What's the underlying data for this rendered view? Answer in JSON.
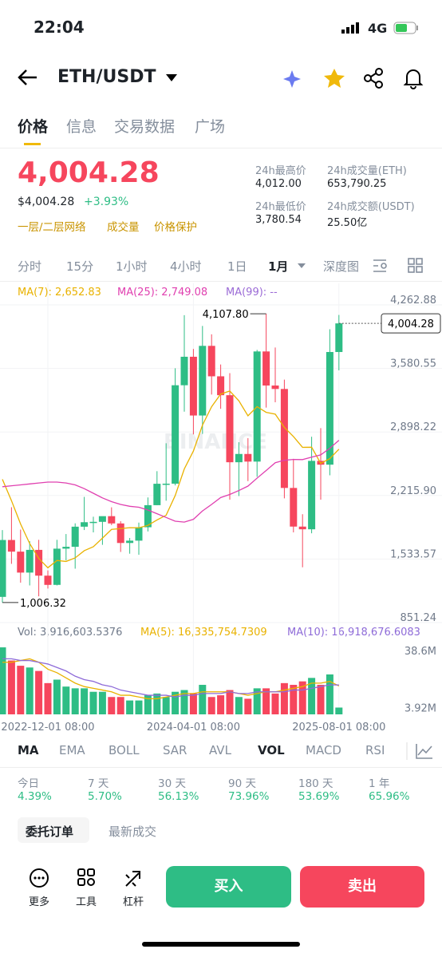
{
  "status_bar": {
    "time": "22:04",
    "network": "4G"
  },
  "header": {
    "pair": "ETH/USDT"
  },
  "tabs": [
    "价格",
    "信息",
    "交易数据",
    "广场"
  ],
  "price": {
    "last": "4,004.28",
    "usd": "$4,004.28",
    "change": "+3.93%",
    "tags": [
      "一层/二层网络",
      "成交量",
      "价格保护"
    ]
  },
  "stats": [
    {
      "label": "24h最高价",
      "value": "4,012.00"
    },
    {
      "label": "24h成交量(ETH)",
      "value": "653,790.25"
    },
    {
      "label": "24h最低价",
      "value": "3,780.54"
    },
    {
      "label": "24h成交额(USDT)",
      "value": "25.50亿"
    }
  ],
  "intervals": [
    "分时",
    "15分",
    "1小时",
    "4小时",
    "1日",
    "1月",
    "深度图"
  ],
  "chart_data": {
    "type": "candlestick",
    "watermark": "BINANCE",
    "categories": [
      null,
      null,
      null,
      null,
      null,
      "2022-12-01 08:00",
      null,
      null,
      null,
      null,
      null,
      null,
      null,
      null,
      null,
      null,
      null,
      null,
      null,
      null,
      null,
      "2024-04-01 08:00",
      null,
      null,
      null,
      null,
      null,
      null,
      null,
      null,
      null,
      null,
      null,
      null,
      null,
      null,
      null,
      "2025-08-01 08:00"
    ],
    "open": [
      1067,
      1678,
      1553,
      1328,
      1572,
      1295,
      1196,
      1585,
      1605,
      1821,
      1869,
      1873,
      1934,
      1856,
      1646,
      1671,
      1815,
      2052,
      2282,
      2283,
      3340,
      3646,
      3015,
      3763,
      3436,
      3233,
      2513,
      2602,
      2520,
      3703,
      3337,
      3300,
      2237,
      1822,
      1793,
      2528,
      2487,
      3697
    ],
    "high": [
      1785,
      2030,
      1790,
      1665,
      1680,
      1352,
      1680,
      1742,
      1857,
      2141,
      1928,
      1928,
      2029,
      1880,
      1700,
      1865,
      2135,
      2417,
      2717,
      3522,
      4093,
      3730,
      3977,
      3887,
      3563,
      3470,
      2728,
      2772,
      3720,
      4107.8,
      3745,
      3400,
      2550,
      1955,
      2787,
      2880,
      3941,
      4095
    ],
    "low": [
      1006.32,
      1422,
      1220,
      1190,
      1073,
      1157,
      1190,
      1460,
      1370,
      1785,
      1760,
      1626,
      1838,
      1550,
      1531,
      1520,
      1770,
      2051,
      2100,
      2265,
      3056,
      2812,
      2817,
      3240,
      3087,
      2111,
      2150,
      2310,
      2357,
      3100,
      3157,
      2125,
      1760,
      1385,
      1750,
      2111,
      2373,
      3500
    ],
    "close": [
      1678,
      1553,
      1328,
      1572,
      1295,
      1196,
      1585,
      1605,
      1821,
      1869,
      1873,
      1934,
      1856,
      1646,
      1671,
      1815,
      2052,
      2282,
      2283,
      3340,
      3646,
      3015,
      3763,
      3436,
      3233,
      2513,
      2602,
      2520,
      3703,
      3337,
      3300,
      2237,
      1822,
      1793,
      2528,
      2487,
      3697,
      4004.28
    ],
    "up_color": "#2ebd85",
    "down_color": "#f6465d",
    "ylim": [
      851.24,
      4262.88
    ],
    "yticks": [
      {
        "value": 4262.88,
        "label": "4,262.88"
      },
      {
        "value": 3580.55,
        "label": "3,580.55"
      },
      {
        "value": 2898.22,
        "label": "2,898.22"
      },
      {
        "value": 2215.9,
        "label": "2,215.90"
      },
      {
        "value": 1533.57,
        "label": "1,533.57"
      },
      {
        "value": 851.24,
        "label": "851.24"
      }
    ],
    "ma_lines": [
      {
        "label": "MA(7): 2,652.83",
        "color": "#e9b200",
        "values": [
          2330,
          2100,
          1850,
          1640,
          1480,
          1380,
          1458.1,
          1447.7,
          1486.0,
          1563.3,
          1606.3,
          1697.6,
          1791.9,
          1800.6,
          1810.0,
          1809.1,
          1835.3,
          1893.7,
          1943.6,
          2155.6,
          2441.3,
          2633.3,
          2911.6,
          3109.3,
          3245.1,
          3278.0,
          3172.6,
          3011.7,
          3110.0,
          3049.1,
          3029.7,
          2887.4,
          2788.7,
          2673.1,
          2674.3,
          2500.6,
          2552.0,
          2652.83
        ]
      },
      {
        "label": "MA(25): 2,749.08",
        "color": "#e040b0",
        "values": [
          2250,
          2260,
          2270,
          2280,
          2290,
          2300,
          2300,
          2290,
          2270,
          2230,
          2180,
          2130,
          2090,
          2060,
          2040,
          2030,
          2000,
          1960,
          1920,
          1880,
          1870,
          1900,
          1990,
          2060,
          2133.9,
          2167.3,
          2209.2,
          2256.9,
          2342.2,
          2423.8,
          2508.0,
          2534.1,
          2542.8,
          2541.6,
          2568.0,
          2592.6,
          2663.1,
          2749.08
        ]
      },
      {
        "label": "MA(99): --",
        "color": "#9b6bd6"
      }
    ],
    "last_price": {
      "value": 4004.28,
      "label": "4,004.28"
    },
    "annotations": [
      {
        "value": 4107.8,
        "label": "4,107.80"
      },
      {
        "value": 1006.32,
        "label": "1,006.32"
      }
    ],
    "volume": {
      "label": "Vol: 3,916,603.5376",
      "ylim": [
        0,
        40000000
      ],
      "yticks": [
        {
          "value": 38600000,
          "label": "38.6M"
        },
        {
          "value": 3916603.5376,
          "label": "3.92M"
        }
      ],
      "values": [
        38600000,
        31000000,
        28000000,
        27000000,
        25000000,
        18000000,
        20000000,
        16000000,
        15000000,
        15000000,
        13000000,
        13000000,
        10000000,
        10000000,
        8000000,
        8000000,
        11000000,
        12000000,
        10000000,
        13000000,
        14000000,
        12000000,
        17000000,
        10000000,
        11000000,
        14000000,
        10000000,
        9000000,
        15000000,
        15000000,
        12000000,
        18000000,
        17000000,
        19000000,
        21000000,
        17000000,
        23000000,
        3916603.5376
      ],
      "ma_lines": [
        {
          "label": "MA(5): 16,335,754.7309",
          "color": "#e9b200",
          "values": [
            30000000,
            30000000,
            31000000,
            32000000,
            30000000,
            26000000,
            24000000,
            21000000,
            18000000,
            16000000,
            15000000,
            14000000,
            13000000,
            11000000,
            11000000,
            10000000,
            9000000,
            9000000,
            10000000,
            11000000,
            12000000,
            12000000,
            13000000,
            13000000,
            13000000,
            13000000,
            12000000,
            11000000,
            12000000,
            13000000,
            13000000,
            14000000,
            15000000,
            16000000,
            18000000,
            18000000,
            19000000,
            16335754.7309
          ]
        },
        {
          "label": "MA(10): 16,918,676.6083",
          "color": "#8e6bd8",
          "values": [
            32000000,
            32000000,
            31000000,
            31000000,
            30000000,
            29000000,
            27000000,
            25000000,
            22000000,
            20000000,
            19000000,
            17000000,
            16000000,
            14000000,
            13000000,
            12000000,
            11000000,
            11000000,
            11000000,
            10000000,
            11000000,
            11000000,
            12000000,
            12000000,
            12000000,
            13000000,
            12000000,
            12000000,
            13000000,
            13000000,
            13000000,
            13000000,
            14000000,
            14000000,
            15000000,
            16000000,
            17000000,
            16918676.6083
          ]
        }
      ]
    }
  },
  "indicators": [
    "MA",
    "EMA",
    "BOLL",
    "SAR",
    "AVL",
    "VOL",
    "MACD",
    "RSI"
  ],
  "performance": [
    {
      "period": "今日",
      "change": "4.39%"
    },
    {
      "period": "7 天",
      "change": "5.70%"
    },
    {
      "period": "30 天",
      "change": "56.13%"
    },
    {
      "period": "90 天",
      "change": "73.96%"
    },
    {
      "period": "180 天",
      "change": "53.69%"
    },
    {
      "period": "1 年",
      "change": "65.96%"
    }
  ],
  "order_tabs": [
    "委托订单",
    "最新成交"
  ],
  "bottom": {
    "tools": [
      "更多",
      "工具",
      "杠杆"
    ],
    "buy": "买入",
    "sell": "卖出"
  }
}
